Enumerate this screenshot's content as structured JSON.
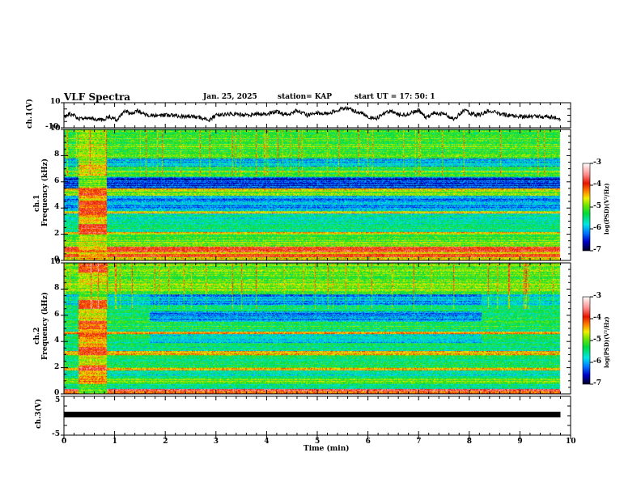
{
  "header": {
    "title": "VLF Spectra",
    "date": "Jan. 25, 2025",
    "station": "station= KAP",
    "start": "start  UT  =   17: 50: 1"
  },
  "chart_data": [
    {
      "type": "line",
      "name": "ch1-waveform",
      "ylabel": "ch.1(V)",
      "ylim": [
        -10,
        10
      ],
      "ytick_labels": [
        "10",
        "-10"
      ],
      "xlim": [
        0,
        10
      ],
      "x_end": 9.8,
      "description_values": {
        "x": [
          0,
          0.1,
          0.2,
          0.3,
          0.45,
          0.6,
          0.75,
          0.9,
          1.05,
          1.2,
          1.3,
          1.45,
          1.6,
          1.75,
          1.9,
          2.1,
          2.3,
          2.5,
          2.7,
          2.85,
          3.0,
          3.2,
          3.4,
          3.6,
          3.8,
          4.0,
          4.2,
          4.4,
          4.6,
          4.8,
          5.0,
          5.2,
          5.4,
          5.55,
          5.7,
          5.85,
          6.0,
          6.15,
          6.3,
          6.45,
          6.6,
          6.8,
          7.0,
          7.15,
          7.3,
          7.5,
          7.7,
          7.9,
          8.05,
          8.2,
          8.4,
          8.6,
          8.8,
          9.0,
          9.2,
          9.4,
          9.6,
          9.8
        ],
        "y": [
          -1,
          1,
          0,
          -3,
          -2,
          -3,
          -4,
          -1,
          -4,
          4,
          1,
          4,
          0,
          0,
          0,
          0,
          -1,
          -1,
          -2,
          -4,
          0,
          1,
          1,
          0,
          1,
          1,
          3,
          0,
          4,
          0,
          2,
          1,
          4,
          6,
          4,
          2,
          -1,
          -3,
          1,
          4,
          0,
          1,
          4,
          -2,
          2,
          1,
          -3,
          4,
          1,
          0,
          4,
          1,
          0,
          -1,
          -1,
          -1,
          -1,
          -3
        ]
      }
    },
    {
      "type": "heatmap",
      "name": "ch1-spectrogram",
      "ylabel_channel": "ch.1",
      "ylabel": "Frequency  (kHz)",
      "ylim": [
        0,
        10
      ],
      "ytick_labels": [
        "0",
        "2",
        "4",
        "6",
        "8",
        "10"
      ],
      "xlim": [
        0,
        10
      ],
      "x_end": 9.8,
      "colorbar": {
        "label": "log(PSD)(V²/Hz)",
        "range": [
          -7,
          -3
        ],
        "tick_labels": [
          "-3",
          "-4",
          "-5",
          "-6",
          "-7"
        ]
      },
      "burst": {
        "start": 0.28,
        "end": 0.85
      },
      "bands_kHz_log": [
        [
          0,
          0.3,
          -4.6
        ],
        [
          0.3,
          0.5,
          -4.0
        ],
        [
          0.5,
          0.7,
          -4.4
        ],
        [
          0.7,
          0.9,
          -3.9
        ],
        [
          0.9,
          1.1,
          -3.7
        ],
        [
          1.1,
          1.6,
          -5.0
        ],
        [
          1.6,
          2.0,
          -5.2
        ],
        [
          2.0,
          2.2,
          -4.6
        ],
        [
          2.2,
          3.0,
          -5.5
        ],
        [
          3.0,
          3.6,
          -5.7
        ],
        [
          3.6,
          3.8,
          -4.7
        ],
        [
          3.8,
          4.6,
          -6.0
        ],
        [
          4.6,
          5.0,
          -6.1
        ],
        [
          5.0,
          5.3,
          -5.0
        ],
        [
          5.3,
          5.5,
          -4.6
        ],
        [
          5.5,
          6.4,
          -6.4
        ],
        [
          6.4,
          6.7,
          -5.2
        ],
        [
          6.7,
          6.9,
          -4.8
        ],
        [
          6.9,
          7.2,
          -5.3
        ],
        [
          7.2,
          7.8,
          -5.9
        ],
        [
          7.8,
          10,
          -5.1
        ]
      ],
      "burst_bands_kHz_log": [
        [
          0,
          1.1,
          -4.4
        ],
        [
          1.1,
          2.0,
          -4.8
        ],
        [
          2.0,
          2.8,
          -3.9
        ],
        [
          2.8,
          3.5,
          -4.5
        ],
        [
          3.5,
          4.6,
          -4.0
        ],
        [
          4.6,
          5.0,
          -4.5
        ],
        [
          5.0,
          5.6,
          -4.0
        ],
        [
          5.6,
          6.5,
          -5.0
        ],
        [
          6.5,
          7.3,
          -4.5
        ],
        [
          7.3,
          10,
          -4.8
        ]
      ]
    },
    {
      "type": "heatmap",
      "name": "ch2-spectrogram",
      "ylabel_channel": "ch.2",
      "ylabel": "Frequency  (kHz)",
      "ylim": [
        0,
        10
      ],
      "ytick_labels": [
        "0",
        "2",
        "4",
        "6",
        "8",
        "10"
      ],
      "xlim": [
        0,
        10
      ],
      "x_end": 9.8,
      "colorbar": {
        "label": "log(PSD)(V²/Hz)",
        "range": [
          -7,
          -3
        ],
        "tick_labels": [
          "-3",
          "-4",
          "-5",
          "-6",
          "-7"
        ]
      },
      "burst": {
        "start": 0.28,
        "end": 0.85
      },
      "quiet_interval": {
        "start": 1.7,
        "end": 8.25,
        "bands": [
          [
            3.9,
            4.6,
            -5.9
          ],
          [
            5.5,
            6.3,
            -6.1
          ],
          [
            6.8,
            7.6,
            -6.0
          ]
        ]
      },
      "bands_kHz_log": [
        [
          0,
          0.2,
          -4.2
        ],
        [
          0.2,
          0.4,
          -3.8
        ],
        [
          0.4,
          0.8,
          -5.5
        ],
        [
          0.8,
          1.2,
          -5.1
        ],
        [
          1.2,
          1.8,
          -5.6
        ],
        [
          1.8,
          2.0,
          -4.6
        ],
        [
          2.0,
          3.0,
          -5.3
        ],
        [
          3.0,
          3.3,
          -4.4
        ],
        [
          3.3,
          4.6,
          -5.5
        ],
        [
          4.6,
          4.8,
          -4.2
        ],
        [
          4.8,
          5.4,
          -5.3
        ],
        [
          5.4,
          6.8,
          -5.4
        ],
        [
          6.8,
          7.6,
          -5.7
        ],
        [
          7.6,
          10,
          -5.0
        ]
      ],
      "burst_bands_kHz_log": [
        [
          0,
          0.8,
          -5.1
        ],
        [
          0.8,
          1.8,
          -4.4
        ],
        [
          1.8,
          2.2,
          -3.9
        ],
        [
          2.2,
          3.0,
          -4.6
        ],
        [
          3.0,
          3.6,
          -3.9
        ],
        [
          3.6,
          4.4,
          -4.5
        ],
        [
          4.4,
          5.6,
          -4.1
        ],
        [
          5.6,
          6.5,
          -4.6
        ],
        [
          6.5,
          7.2,
          -3.9
        ],
        [
          7.2,
          8.4,
          -4.9
        ],
        [
          8.4,
          9.3,
          -4.6
        ],
        [
          9.3,
          10,
          -4.0
        ]
      ]
    },
    {
      "type": "line",
      "name": "ch3-waveform",
      "ylabel": "ch.3(V)",
      "ylim": [
        -5,
        5
      ],
      "ytick_labels": [
        "5",
        "-5"
      ],
      "xlim": [
        0,
        10
      ],
      "x_end": 9.8,
      "constant_value": 0.3,
      "xlabel": "Time  (min)",
      "xtick_labels": [
        "0",
        "1",
        "2",
        "3",
        "4",
        "5",
        "6",
        "7",
        "8",
        "9",
        "10"
      ]
    }
  ]
}
